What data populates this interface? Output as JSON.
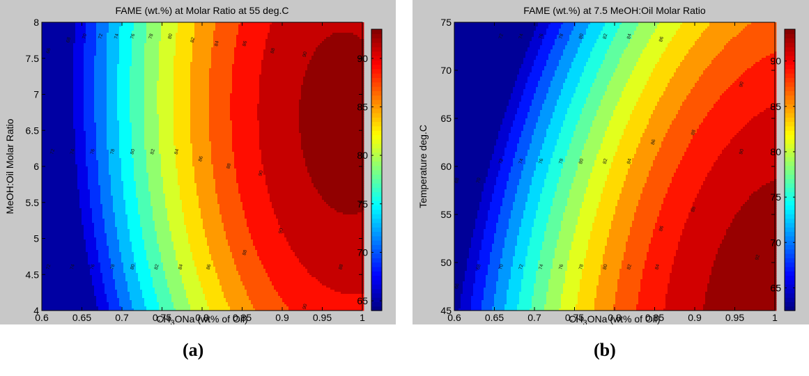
{
  "captions": [
    "(a)",
    "(b)"
  ],
  "colormap": "jet",
  "chart_data": [
    {
      "type": "heatmap",
      "subtype": "filled-contour",
      "title": "FAME (wt.%) at Molar Ratio at 55 deg.C",
      "xlabel_main": "CH",
      "xlabel_sub": "3",
      "xlabel_rest": "ONa (wt% of Oil)",
      "ylabel": "MeOH:Oil Molar Ratio",
      "xlim": [
        0.6,
        1.0
      ],
      "ylim": [
        4,
        8
      ],
      "xticks": [
        "0.6",
        "0.65",
        "0.7",
        "0.75",
        "0.8",
        "0.85",
        "0.9",
        "0.95",
        "1"
      ],
      "yticks": [
        "4",
        "4.5",
        "5",
        "5.5",
        "6",
        "6.5",
        "7",
        "7.5",
        "8"
      ],
      "colorbar_range": [
        64,
        93
      ],
      "colorbar_ticks": [
        "65",
        "70",
        "75",
        "80",
        "85",
        "90"
      ],
      "contour_levels": [
        66,
        68,
        70,
        72,
        74,
        76,
        78,
        80,
        82,
        84,
        86,
        88,
        90,
        92
      ],
      "contour_labels": [
        {
          "x": 0.61,
          "y": 7.6,
          "text": "66"
        },
        {
          "x": 0.635,
          "y": 7.75,
          "text": "68"
        },
        {
          "x": 0.655,
          "y": 7.8,
          "text": "70"
        },
        {
          "x": 0.675,
          "y": 7.8,
          "text": "72"
        },
        {
          "x": 0.695,
          "y": 7.8,
          "text": "74"
        },
        {
          "x": 0.715,
          "y": 7.8,
          "text": "76"
        },
        {
          "x": 0.738,
          "y": 7.8,
          "text": "78"
        },
        {
          "x": 0.762,
          "y": 7.8,
          "text": "80"
        },
        {
          "x": 0.79,
          "y": 7.75,
          "text": "82"
        },
        {
          "x": 0.82,
          "y": 7.7,
          "text": "84"
        },
        {
          "x": 0.855,
          "y": 7.7,
          "text": "86"
        },
        {
          "x": 0.89,
          "y": 7.6,
          "text": "88"
        },
        {
          "x": 0.93,
          "y": 7.55,
          "text": "90"
        },
        {
          "x": 0.615,
          "y": 6.2,
          "text": "72"
        },
        {
          "x": 0.64,
          "y": 6.2,
          "text": "74"
        },
        {
          "x": 0.665,
          "y": 6.2,
          "text": "76"
        },
        {
          "x": 0.69,
          "y": 6.2,
          "text": "78"
        },
        {
          "x": 0.715,
          "y": 6.2,
          "text": "80"
        },
        {
          "x": 0.74,
          "y": 6.2,
          "text": "82"
        },
        {
          "x": 0.77,
          "y": 6.2,
          "text": "84"
        },
        {
          "x": 0.8,
          "y": 6.1,
          "text": "86"
        },
        {
          "x": 0.835,
          "y": 6.0,
          "text": "88"
        },
        {
          "x": 0.875,
          "y": 5.9,
          "text": "90"
        },
        {
          "x": 0.61,
          "y": 4.6,
          "text": "72"
        },
        {
          "x": 0.64,
          "y": 4.6,
          "text": "74"
        },
        {
          "x": 0.665,
          "y": 4.6,
          "text": "76"
        },
        {
          "x": 0.69,
          "y": 4.6,
          "text": "78"
        },
        {
          "x": 0.715,
          "y": 4.6,
          "text": "80"
        },
        {
          "x": 0.745,
          "y": 4.6,
          "text": "82"
        },
        {
          "x": 0.775,
          "y": 4.6,
          "text": "84"
        },
        {
          "x": 0.81,
          "y": 4.6,
          "text": "86"
        },
        {
          "x": 0.855,
          "y": 4.8,
          "text": "88"
        },
        {
          "x": 0.9,
          "y": 5.1,
          "text": "90"
        },
        {
          "x": 0.975,
          "y": 4.6,
          "text": "88"
        },
        {
          "x": 0.93,
          "y": 4.05,
          "text": "90"
        }
      ]
    },
    {
      "type": "heatmap",
      "subtype": "filled-contour",
      "title": "FAME (wt.%) at 7.5 MeOH:Oil Molar Ratio",
      "xlabel_main": "CH",
      "xlabel_sub": "3",
      "xlabel_rest": "ONa (wt% of Oil)",
      "ylabel": "Temperature deg.C",
      "xlim": [
        0.6,
        1.0
      ],
      "ylim": [
        45,
        75
      ],
      "xticks": [
        "0.6",
        "0.65",
        "0.7",
        "0.75",
        "0.8",
        "0.85",
        "0.9",
        "0.95",
        "1"
      ],
      "yticks": [
        "45",
        "50",
        "55",
        "60",
        "65",
        "70",
        "75"
      ],
      "colorbar_range": [
        62.5,
        93.5
      ],
      "colorbar_ticks": [
        "65",
        "70",
        "75",
        "80",
        "85",
        "90"
      ],
      "contour_levels": [
        64,
        66,
        68,
        70,
        72,
        74,
        76,
        78,
        80,
        82,
        84,
        86,
        88,
        90,
        92
      ],
      "contour_labels": [
        {
          "x": 0.66,
          "y": 73.5,
          "text": "72"
        },
        {
          "x": 0.685,
          "y": 73.5,
          "text": "74"
        },
        {
          "x": 0.71,
          "y": 73.5,
          "text": "76"
        },
        {
          "x": 0.735,
          "y": 73.5,
          "text": "78"
        },
        {
          "x": 0.76,
          "y": 73.5,
          "text": "80"
        },
        {
          "x": 0.79,
          "y": 73.5,
          "text": "82"
        },
        {
          "x": 0.82,
          "y": 73.5,
          "text": "84"
        },
        {
          "x": 0.86,
          "y": 73.2,
          "text": "86"
        },
        {
          "x": 0.96,
          "y": 68.5,
          "text": "90"
        },
        {
          "x": 0.605,
          "y": 58.5,
          "text": "68"
        },
        {
          "x": 0.632,
          "y": 58.5,
          "text": "70"
        },
        {
          "x": 0.66,
          "y": 60.5,
          "text": "72"
        },
        {
          "x": 0.685,
          "y": 60.5,
          "text": "74"
        },
        {
          "x": 0.71,
          "y": 60.5,
          "text": "76"
        },
        {
          "x": 0.735,
          "y": 60.5,
          "text": "78"
        },
        {
          "x": 0.76,
          "y": 60.5,
          "text": "80"
        },
        {
          "x": 0.79,
          "y": 60.5,
          "text": "82"
        },
        {
          "x": 0.82,
          "y": 60.5,
          "text": "84"
        },
        {
          "x": 0.85,
          "y": 62.5,
          "text": "86"
        },
        {
          "x": 0.9,
          "y": 63.5,
          "text": "88"
        },
        {
          "x": 0.96,
          "y": 61.5,
          "text": "90"
        },
        {
          "x": 0.605,
          "y": 47.5,
          "text": "66"
        },
        {
          "x": 0.632,
          "y": 49.5,
          "text": "68"
        },
        {
          "x": 0.66,
          "y": 49.5,
          "text": "70"
        },
        {
          "x": 0.685,
          "y": 49.5,
          "text": "72"
        },
        {
          "x": 0.71,
          "y": 49.5,
          "text": "74"
        },
        {
          "x": 0.735,
          "y": 49.5,
          "text": "76"
        },
        {
          "x": 0.76,
          "y": 49.5,
          "text": "78"
        },
        {
          "x": 0.79,
          "y": 49.5,
          "text": "80"
        },
        {
          "x": 0.82,
          "y": 49.5,
          "text": "82"
        },
        {
          "x": 0.855,
          "y": 49.5,
          "text": "84"
        },
        {
          "x": 0.86,
          "y": 53.5,
          "text": "86"
        },
        {
          "x": 0.9,
          "y": 55.5,
          "text": "88"
        },
        {
          "x": 0.98,
          "y": 50.5,
          "text": "92"
        }
      ]
    }
  ]
}
